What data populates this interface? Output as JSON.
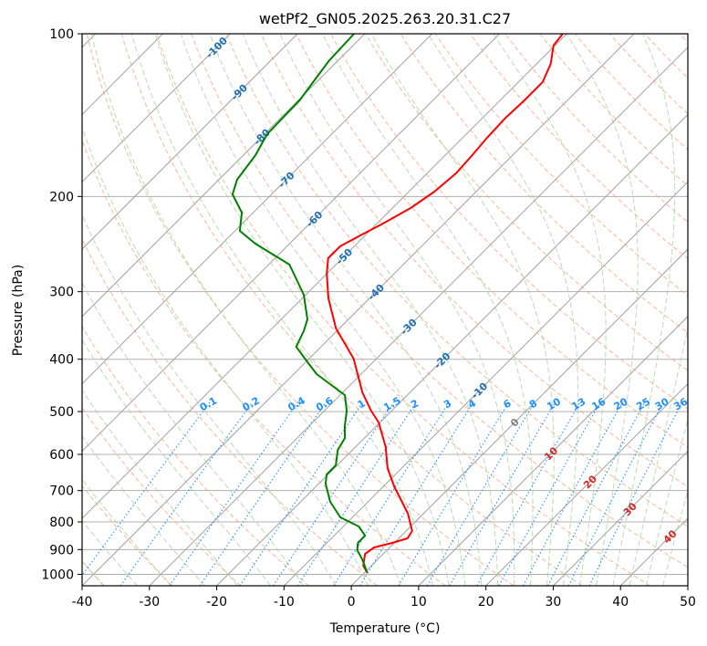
{
  "chart_data": {
    "type": "line",
    "title": "wetPf2_GN05.2025.263.20.31.C27",
    "xlabel": "Temperature (°C)",
    "ylabel": "Pressure (hPa)",
    "xlim": [
      -40,
      50
    ],
    "ylim": [
      1050,
      100
    ],
    "yscale": "log",
    "skew": "skew-T log-P",
    "grid": true,
    "xticks": [
      -40,
      -30,
      -20,
      -10,
      0,
      10,
      20,
      30,
      40,
      50
    ],
    "yticks": [
      100,
      200,
      300,
      400,
      500,
      600,
      700,
      800,
      900,
      1000
    ],
    "series": [
      {
        "name": "Temperature",
        "color": "#ff0000",
        "pressure": [
          100,
          105.2,
          113.7,
          122.9,
          132.8,
          143.5,
          155.1,
          167.7,
          181.2,
          195.9,
          210.1,
          224.4,
          236.1,
          247.3,
          260.2,
          277.9,
          308.7,
          350.9,
          399.0,
          460.6,
          497.9,
          523.7,
          581.6,
          636,
          687.4,
          772.3,
          831.6,
          858,
          874.7,
          892,
          916.6,
          964,
          994.5
        ],
        "temperature": [
          -50.6,
          -50.2,
          -47.9,
          -46.4,
          -46.4,
          -46.6,
          -46.4,
          -46.0,
          -45.7,
          -46.2,
          -47.3,
          -49.1,
          -50.7,
          -52.1,
          -52.1,
          -50.0,
          -46.1,
          -40.5,
          -33.4,
          -27.1,
          -23.1,
          -20.2,
          -15.5,
          -12.1,
          -8.4,
          -2.3,
          0.9,
          1.3,
          -0.3,
          -2.3,
          -2.7,
          -1.2,
          0.5
        ]
      },
      {
        "name": "Dewpoint",
        "color": "#008000",
        "pressure": [
          100,
          112.4,
          132.8,
          153.3,
          167.7,
          186.2,
          198.2,
          214.2,
          231.5,
          244.5,
          267.3,
          303.9,
          337.5,
          355,
          379.3,
          405.2,
          426.2,
          455.3,
          466,
          497.9,
          531.9,
          559.5,
          588.4,
          628.6,
          653.5,
          679.4,
          734.4,
          784.5,
          815.6,
          848,
          874.7,
          902.4,
          938.2,
          990.6
        ],
        "temperature": [
          -81.6,
          -81.3,
          -79.8,
          -79.6,
          -78.2,
          -77.3,
          -75.8,
          -71.7,
          -69.3,
          -65.1,
          -56.9,
          -50.3,
          -46.1,
          -44.9,
          -43.7,
          -39.7,
          -36.6,
          -31.2,
          -29.3,
          -26.7,
          -24.7,
          -22.9,
          -22.2,
          -20.2,
          -20.2,
          -19.0,
          -15.6,
          -11.8,
          -7.7,
          -5.4,
          -5.4,
          -4.4,
          -2.3,
          0.3
        ]
      }
    ],
    "isotherm_labels": [
      "-100",
      "-90",
      "-80",
      "-70",
      "-60",
      "-50",
      "-40",
      "-30",
      "-20",
      "-10",
      "0",
      "10",
      "20",
      "30",
      "40"
    ],
    "mixing_ratio_labels": [
      "0.1",
      "0.2",
      "0.4",
      "0.6",
      "1",
      "1.5",
      "2",
      "3",
      "4",
      "6",
      "8",
      "10",
      "13",
      "16",
      "20",
      "25",
      "30",
      "36"
    ],
    "colors": {
      "isotherm": "#a0a0a0",
      "dry_adiabat": "#f4a582",
      "moist_adiabat": "#a6d49b",
      "mixing_ratio": "#1e90ff",
      "label_negative": "#1f6fb4",
      "label_zero": "#808080",
      "label_positive": "#d62728"
    }
  }
}
